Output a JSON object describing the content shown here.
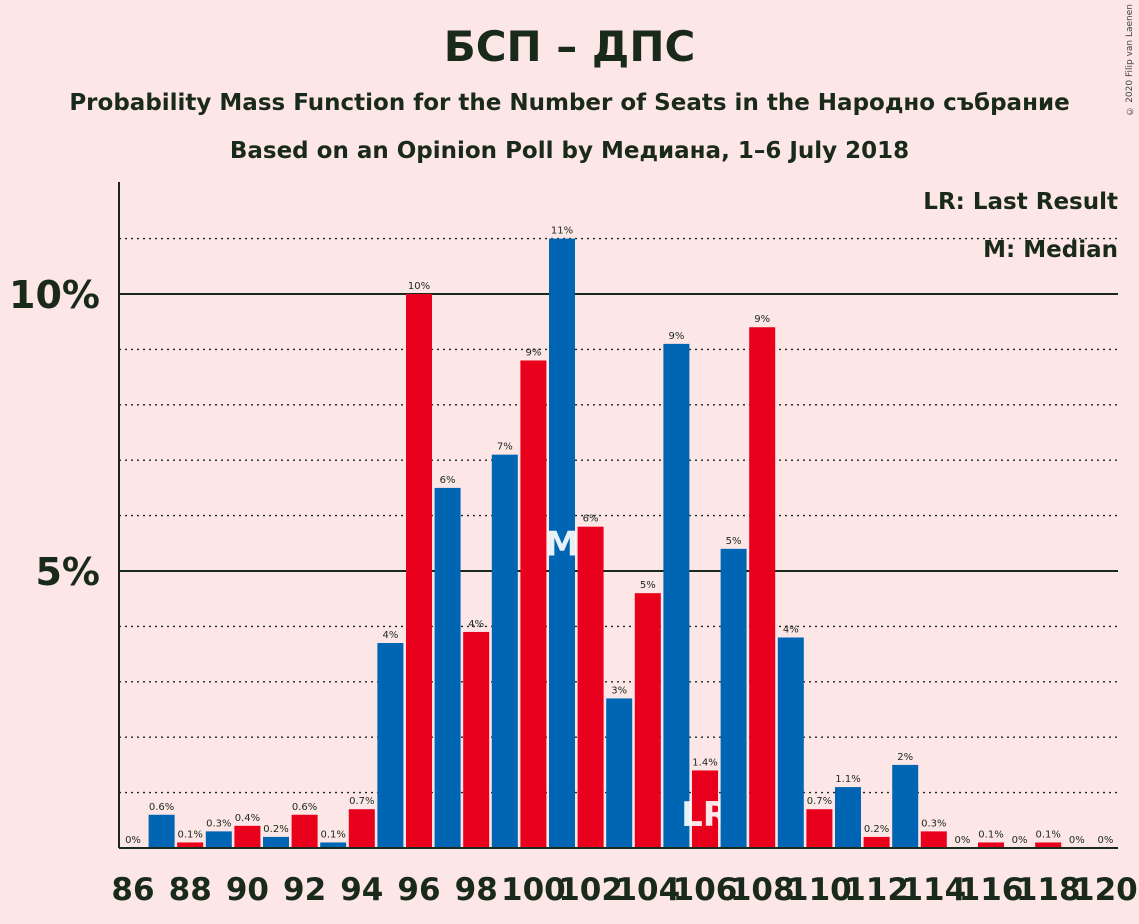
{
  "header": {
    "title": "БСП – ДПС",
    "subtitle": "Probability Mass Function for the Number of Seats in the Народно събрание",
    "source": "Based on an Opinion Poll by Медиана, 1–6 July 2018",
    "copyright": "© 2020 Filip van Laenen"
  },
  "legend": {
    "lr": "LR: Last Result",
    "m": "M: Median"
  },
  "colors": {
    "background": "#fde6e6",
    "blue": "#0066b3",
    "red": "#e8001c"
  },
  "chart_data": {
    "type": "bar",
    "xlabel": "",
    "ylabel": "",
    "ylim": [
      0,
      12
    ],
    "yticks": [
      {
        "value": 5,
        "label": "5%"
      },
      {
        "value": 10,
        "label": "10%"
      }
    ],
    "grid": "dotted every 1%, solid at 5% and 10%",
    "legend_position": "top-right",
    "x_tick_labels": [
      "86",
      "88",
      "90",
      "92",
      "94",
      "96",
      "98",
      "100",
      "102",
      "104",
      "106",
      "108",
      "110",
      "112",
      "114",
      "116",
      "118",
      "120"
    ],
    "series": [
      {
        "color": "#0066b3",
        "values": [
          0.6,
          0.3,
          0.2,
          0.1,
          3.7,
          6.5,
          7.1,
          11.0,
          2.7,
          9.1,
          5.4,
          3.8,
          1.1,
          1.5,
          0,
          0,
          0
        ]
      },
      {
        "color": "#e8001c",
        "values": [
          0,
          0.1,
          0.4,
          0.6,
          0.7,
          10.0,
          3.9,
          8.8,
          5.8,
          4.6,
          1.4,
          9.4,
          0.7,
          0.2,
          0.3,
          0.1,
          0.1,
          0
        ]
      }
    ],
    "bars": [
      {
        "seats": 86,
        "value": 0,
        "label": "0%",
        "color": "#e8001c"
      },
      {
        "seats": 87,
        "value": 0.6,
        "label": "0.6%",
        "color": "#0066b3"
      },
      {
        "seats": 88,
        "value": 0.1,
        "label": "0.1%",
        "color": "#e8001c"
      },
      {
        "seats": 89,
        "value": 0.3,
        "label": "0.3%",
        "color": "#0066b3"
      },
      {
        "seats": 90,
        "value": 0.4,
        "label": "0.4%",
        "color": "#e8001c"
      },
      {
        "seats": 91,
        "value": 0.2,
        "label": "0.2%",
        "color": "#0066b3"
      },
      {
        "seats": 92,
        "value": 0.6,
        "label": "0.6%",
        "color": "#e8001c"
      },
      {
        "seats": 93,
        "value": 0.1,
        "label": "0.1%",
        "color": "#0066b3"
      },
      {
        "seats": 94,
        "value": 0.7,
        "label": "0.7%",
        "color": "#e8001c"
      },
      {
        "seats": 95,
        "value": 3.7,
        "label": "4%",
        "color": "#0066b3"
      },
      {
        "seats": 96,
        "value": 10.0,
        "label": "10%",
        "color": "#e8001c"
      },
      {
        "seats": 97,
        "value": 6.5,
        "label": "6%",
        "color": "#0066b3"
      },
      {
        "seats": 98,
        "value": 3.9,
        "label": "4%",
        "color": "#e8001c"
      },
      {
        "seats": 99,
        "value": 7.1,
        "label": "7%",
        "color": "#0066b3"
      },
      {
        "seats": 100,
        "value": 8.8,
        "label": "9%",
        "color": "#e8001c"
      },
      {
        "seats": 101,
        "value": 11.0,
        "label": "11%",
        "color": "#0066b3",
        "marker": "M"
      },
      {
        "seats": 102,
        "value": 5.8,
        "label": "6%",
        "color": "#e8001c"
      },
      {
        "seats": 103,
        "value": 2.7,
        "label": "3%",
        "color": "#0066b3"
      },
      {
        "seats": 104,
        "value": 4.6,
        "label": "5%",
        "color": "#e8001c"
      },
      {
        "seats": 105,
        "value": 9.1,
        "label": "9%",
        "color": "#0066b3"
      },
      {
        "seats": 106,
        "value": 1.4,
        "label": "1.4%",
        "color": "#e8001c",
        "marker": "LR"
      },
      {
        "seats": 107,
        "value": 5.4,
        "label": "5%",
        "color": "#0066b3"
      },
      {
        "seats": 108,
        "value": 9.4,
        "label": "9%",
        "color": "#e8001c"
      },
      {
        "seats": 109,
        "value": 3.8,
        "label": "4%",
        "color": "#0066b3"
      },
      {
        "seats": 110,
        "value": 0.7,
        "label": "0.7%",
        "color": "#e8001c"
      },
      {
        "seats": 111,
        "value": 1.1,
        "label": "1.1%",
        "color": "#0066b3"
      },
      {
        "seats": 112,
        "value": 0.2,
        "label": "0.2%",
        "color": "#e8001c"
      },
      {
        "seats": 113,
        "value": 1.5,
        "label": "2%",
        "color": "#0066b3"
      },
      {
        "seats": 114,
        "value": 0.3,
        "label": "0.3%",
        "color": "#e8001c"
      },
      {
        "seats": 115,
        "value": 0,
        "label": "0%",
        "color": "#0066b3"
      },
      {
        "seats": 116,
        "value": 0.1,
        "label": "0.1%",
        "color": "#e8001c"
      },
      {
        "seats": 117,
        "value": 0,
        "label": "0%",
        "color": "#0066b3"
      },
      {
        "seats": 118,
        "value": 0.1,
        "label": "0.1%",
        "color": "#e8001c"
      },
      {
        "seats": 119,
        "value": 0,
        "label": "0%",
        "color": "#0066b3"
      },
      {
        "seats": 120,
        "value": 0,
        "label": "0%",
        "color": "#e8001c"
      }
    ]
  }
}
